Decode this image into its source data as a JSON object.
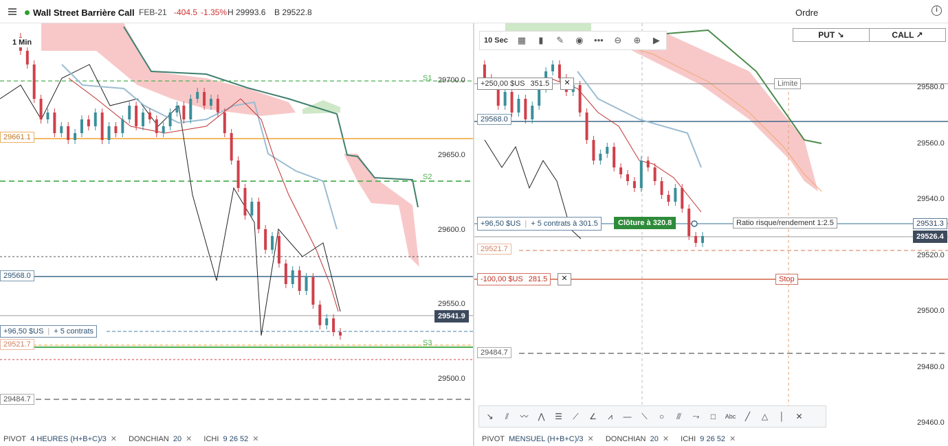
{
  "header": {
    "instrument": "Wall Street Barrière Call",
    "expiry": "FEB-21",
    "change": "-404.5",
    "change_pct": "-1.35%",
    "high": "H 29993.6",
    "low": "B 29522.8",
    "order_title": "Ordre",
    "put_label": "PUT ↘",
    "call_label": "CALL ↗"
  },
  "colors": {
    "bull": "#3a8f9a",
    "bear": "#d0404a",
    "cloud": "#f8c8c8",
    "cloud_green": "#cfe8c8",
    "support": "#4caf50",
    "pivot_orange": "#f0a030"
  },
  "left_chart": {
    "timeframe": "1 Min",
    "price_labels": [
      "29700.0",
      "29650.0",
      "29600.0",
      "29550.0",
      "29500.0"
    ],
    "current_price": "29541.9",
    "pivot_labels": [
      "S1",
      "S2",
      "S3"
    ],
    "line_labels": {
      "orange": "29661.1",
      "blue": "29568.0",
      "stop": "29521.7",
      "grey": "29484.7"
    },
    "position": {
      "pnl": "+96,50 $US",
      "contracts": "+ 5 contrats"
    },
    "indicators": [
      {
        "name": "PIVOT",
        "param": "4 HEURES  (H+B+C)/3"
      },
      {
        "name": "DONCHIAN",
        "param": "20"
      },
      {
        "name": "ICHI",
        "param": "9  26  52"
      }
    ]
  },
  "right_chart": {
    "timeframe": "10 Sec",
    "price_labels": [
      "29580.0",
      "29560.0",
      "29540.0",
      "29520.0",
      "29500.0",
      "29480.0",
      "29460.0"
    ],
    "current_price": "29526.4",
    "position_price": "29531.3",
    "line_labels": {
      "blue": "29568.0",
      "stop": "29521.7",
      "grey": "29484.7"
    },
    "take_profit": {
      "pnl": "+250,00 $US",
      "price": "351.5",
      "label": "Limite"
    },
    "position": {
      "pnl": "+96,50 $US",
      "contracts": "+ 5 contrats à 301.5",
      "close_label": "Clôture à 320.8"
    },
    "risk_reward": "Ratio risque/rendement 1:2.5",
    "stop_loss": {
      "pnl": "-100,00 $US",
      "price": "281.5",
      "label": "Stop"
    },
    "indicators": [
      {
        "name": "PIVOT",
        "param": "MENSUEL  (H+B+C)/3"
      },
      {
        "name": "DONCHIAN",
        "param": "20"
      },
      {
        "name": "ICHI",
        "param": "9  26  52"
      }
    ],
    "toolbar_icons": [
      "settings-grid-icon",
      "bar-chart-icon",
      "pencil-icon",
      "eye-icon",
      "more-icon",
      "zoom-out-icon",
      "zoom-in-icon",
      "play-icon"
    ],
    "drawing_tools": [
      "arrow-icon",
      "trend-lines-icon",
      "wave-icon",
      "zigzag-icon",
      "fibonacci-icon",
      "fan-icon",
      "gann-icon",
      "pattern-icon",
      "horizontal-line-icon",
      "ruler-icon",
      "circle-icon",
      "channel-icon",
      "path-icon",
      "rectangle-icon",
      "text-icon",
      "line-icon",
      "triangle-icon",
      "vertical-line-icon",
      "close-icon"
    ]
  }
}
